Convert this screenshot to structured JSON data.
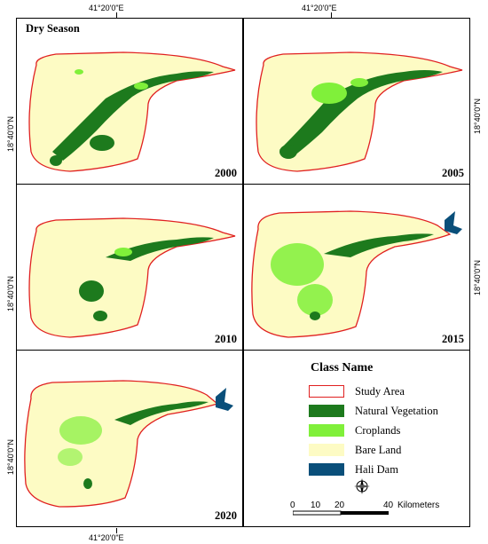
{
  "season_label": "Dry Season",
  "coords": {
    "lon": "41°20'0\"E",
    "lat": "18°40'0\"N"
  },
  "panels": [
    {
      "year": "2000",
      "veg": "high",
      "crop": "low",
      "dam": false
    },
    {
      "year": "2005",
      "veg": "high",
      "crop": "mid",
      "dam": false
    },
    {
      "year": "2010",
      "veg": "mid",
      "crop": "low",
      "dam": false
    },
    {
      "year": "2015",
      "veg": "mid",
      "crop": "high",
      "dam": true
    },
    {
      "year": "2020",
      "veg": "low",
      "crop": "high",
      "dam": true
    }
  ],
  "legend": {
    "title": "Class Name",
    "items": [
      {
        "label": "Study Area",
        "fill": "#ffffff",
        "stroke": "#e02020"
      },
      {
        "label": "Natural Vegetation",
        "fill": "#1d7a1d",
        "stroke": "none"
      },
      {
        "label": "Croplands",
        "fill": "#80f03a",
        "stroke": "none"
      },
      {
        "label": "Bare Land",
        "fill": "#fdfbc4",
        "stroke": "none"
      },
      {
        "label": "Hali Dam",
        "fill": "#0a4f7a",
        "stroke": "none"
      }
    ]
  },
  "compass_icon": "north-arrow-icon",
  "scale": {
    "ticks": [
      "0",
      "10",
      "20",
      "40"
    ],
    "unit": "Kilometers"
  },
  "colors": {
    "study_outline": "#e02020",
    "bare_land": "#fdfbc4",
    "natural_vegetation": "#1d7a1d",
    "croplands": "#80f03a",
    "dam": "#0a4f7a"
  }
}
